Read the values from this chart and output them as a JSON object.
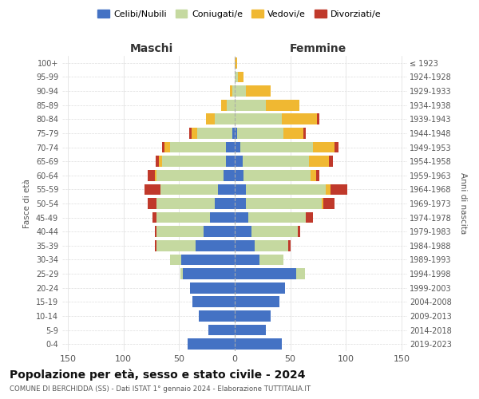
{
  "age_groups": [
    "0-4",
    "5-9",
    "10-14",
    "15-19",
    "20-24",
    "25-29",
    "30-34",
    "35-39",
    "40-44",
    "45-49",
    "50-54",
    "55-59",
    "60-64",
    "65-69",
    "70-74",
    "75-79",
    "80-84",
    "85-89",
    "90-94",
    "95-99",
    "100+"
  ],
  "birth_years": [
    "2019-2023",
    "2014-2018",
    "2009-2013",
    "2004-2008",
    "1999-2003",
    "1994-1998",
    "1989-1993",
    "1984-1988",
    "1979-1983",
    "1974-1978",
    "1969-1973",
    "1964-1968",
    "1959-1963",
    "1954-1958",
    "1949-1953",
    "1944-1948",
    "1939-1943",
    "1934-1938",
    "1929-1933",
    "1924-1928",
    "≤ 1923"
  ],
  "colors": {
    "celibe": "#4472c4",
    "coniugato": "#c5d9a0",
    "vedovo": "#f0b832",
    "divorziato": "#c0392b"
  },
  "maschi": {
    "celibe": [
      42,
      24,
      32,
      38,
      40,
      47,
      48,
      35,
      28,
      22,
      18,
      15,
      10,
      8,
      8,
      2,
      0,
      0,
      0,
      0,
      0
    ],
    "coniugato": [
      0,
      0,
      0,
      0,
      0,
      2,
      10,
      35,
      42,
      48,
      52,
      52,
      60,
      57,
      50,
      32,
      18,
      7,
      2,
      0,
      0
    ],
    "vedovo": [
      0,
      0,
      0,
      0,
      0,
      0,
      0,
      0,
      0,
      0,
      0,
      0,
      2,
      3,
      5,
      5,
      8,
      5,
      2,
      0,
      0
    ],
    "divorziato": [
      0,
      0,
      0,
      0,
      0,
      0,
      0,
      2,
      2,
      4,
      8,
      14,
      6,
      3,
      2,
      2,
      0,
      0,
      0,
      0,
      0
    ]
  },
  "femmine": {
    "nubile": [
      42,
      28,
      32,
      40,
      45,
      55,
      22,
      18,
      15,
      12,
      10,
      10,
      8,
      7,
      5,
      2,
      0,
      0,
      0,
      0,
      0
    ],
    "coniugata": [
      0,
      0,
      0,
      0,
      0,
      8,
      22,
      30,
      42,
      52,
      68,
      72,
      60,
      60,
      65,
      42,
      42,
      28,
      10,
      3,
      0
    ],
    "vedova": [
      0,
      0,
      0,
      0,
      0,
      0,
      0,
      0,
      0,
      0,
      2,
      4,
      5,
      18,
      20,
      18,
      32,
      30,
      22,
      5,
      2
    ],
    "divorziata": [
      0,
      0,
      0,
      0,
      0,
      0,
      0,
      2,
      2,
      6,
      10,
      15,
      3,
      3,
      3,
      2,
      2,
      0,
      0,
      0,
      0
    ]
  },
  "title": "Popolazione per età, sesso e stato civile - 2024",
  "subtitle": "COMUNE DI BERCHIDDA (SS) - Dati ISTAT 1° gennaio 2024 - Elaborazione TUTTITALIA.IT",
  "xlabel_left": "Maschi",
  "xlabel_right": "Femmine",
  "ylabel_left": "Fasce di età",
  "ylabel_right": "Anni di nascita",
  "xlim": 155,
  "legend_labels": [
    "Celibi/Nubili",
    "Coniugati/e",
    "Vedovi/e",
    "Divorziati/e"
  ]
}
